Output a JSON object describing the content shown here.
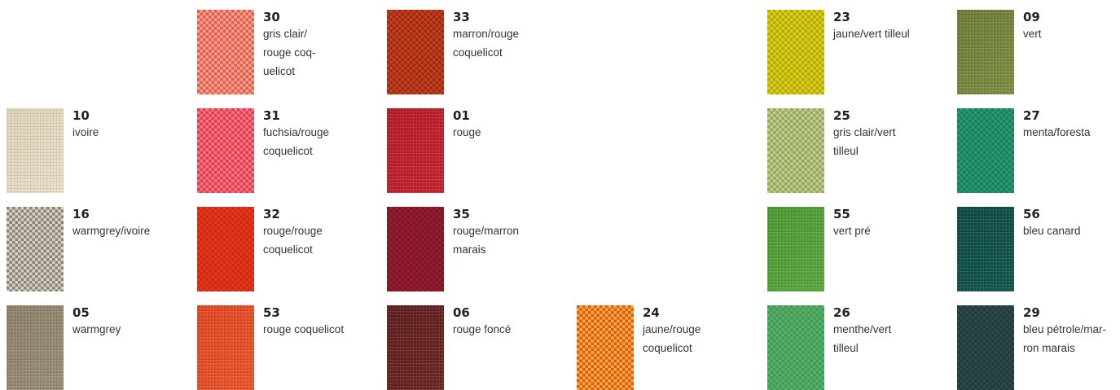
{
  "swatches": [
    {
      "code": "30",
      "name": "gris clair/\nrouge coq-\nuelicot",
      "colors": [
        "#e65a4c",
        "#f2a392"
      ],
      "pattern": "check"
    },
    {
      "code": "33",
      "name": "marron/rouge\ncoquelicot",
      "colors": [
        "#9a2a14",
        "#c7411f"
      ],
      "pattern": "check"
    },
    {
      "code": "23",
      "name": "jaune/vert tilleul",
      "colors": [
        "#b4a90a",
        "#dccf1c"
      ],
      "pattern": "check"
    },
    {
      "code": "09",
      "name": "vert",
      "colors": [
        "#6c7d34",
        "#7d8e40"
      ],
      "pattern": "plain"
    },
    {
      "code": "10",
      "name": "ivoire",
      "colors": [
        "#e0d4b9",
        "#ebe1c9"
      ],
      "pattern": "plain"
    },
    {
      "code": "31",
      "name": "fuchsia/rouge\ncoquelicot",
      "colors": [
        "#e43b4c",
        "#f27887"
      ],
      "pattern": "check"
    },
    {
      "code": "01",
      "name": "rouge",
      "colors": [
        "#b81824",
        "#c62230"
      ],
      "pattern": "plain"
    },
    {
      "code": "25",
      "name": "gris clair/vert\ntilleul",
      "colors": [
        "#93a75b",
        "#c2cd92"
      ],
      "pattern": "check"
    },
    {
      "code": "27",
      "name": "menta/foresta",
      "colors": [
        "#1a7d5c",
        "#2a9a73"
      ],
      "pattern": "check"
    },
    {
      "code": "16",
      "name": "warmgrey/ivoire",
      "colors": [
        "#8a8476",
        "#d7d2c6"
      ],
      "pattern": "check"
    },
    {
      "code": "32",
      "name": "rouge/rouge\ncoquelicot",
      "colors": [
        "#cf2712",
        "#e03a1d"
      ],
      "pattern": "check"
    },
    {
      "code": "35",
      "name": "rouge/marron\nmarais",
      "colors": [
        "#7a1626",
        "#951d2f"
      ],
      "pattern": "check"
    },
    {
      "code": "55",
      "name": "vert pré",
      "colors": [
        "#4a9a33",
        "#58a93d"
      ],
      "pattern": "plain"
    },
    {
      "code": "56",
      "name": "bleu canard",
      "colors": [
        "#0b4a43",
        "#11554d"
      ],
      "pattern": "plain"
    },
    {
      "code": "05",
      "name": "warmgrey",
      "colors": [
        "#8e816a",
        "#9b8e77"
      ],
      "pattern": "plain"
    },
    {
      "code": "53",
      "name": "rouge coquelicot",
      "colors": [
        "#e2461f",
        "#ec5428"
      ],
      "pattern": "plain"
    },
    {
      "code": "06",
      "name": "rouge foncé",
      "colors": [
        "#5f1c1c",
        "#6d2424"
      ],
      "pattern": "plain"
    },
    {
      "code": "24",
      "name": "jaune/rouge\ncoquelicot",
      "colors": [
        "#e1561c",
        "#f2b13a"
      ],
      "pattern": "check"
    },
    {
      "code": "26",
      "name": "menthe/vert\ntilleul",
      "colors": [
        "#3f9a5a",
        "#5bb066"
      ],
      "pattern": "check"
    },
    {
      "code": "29",
      "name": "bleu pétrole/mar-\nron marais",
      "colors": [
        "#203b3a",
        "#2c4a48"
      ],
      "pattern": "check"
    }
  ]
}
